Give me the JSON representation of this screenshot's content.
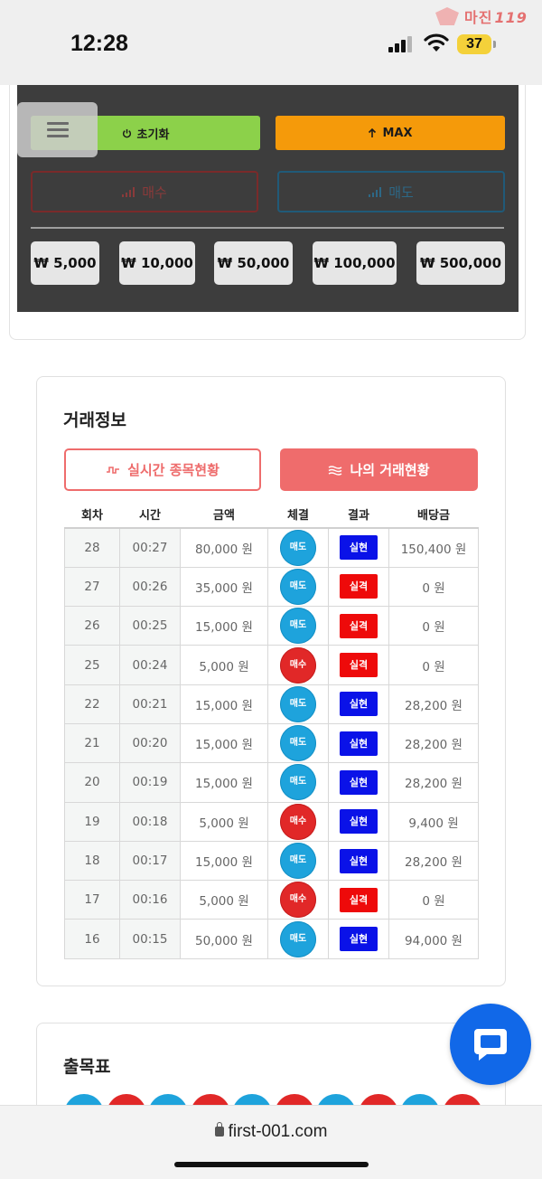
{
  "status_bar": {
    "time": "12:28",
    "battery": "37"
  },
  "watermark": {
    "brand": "마진",
    "number": "119"
  },
  "controls": {
    "reset_label": "초기화",
    "max_label": "MAX",
    "buy_label": "매수",
    "sell_label": "매도",
    "amounts": [
      "₩ 5,000",
      "₩ 10,000",
      "₩ 50,000",
      "₩ 100,000",
      "₩ 500,000"
    ]
  },
  "trade_info": {
    "title": "거래정보",
    "tab_realtime": "실시간 종목현황",
    "tab_mine": "나의 거래현황",
    "headers": [
      "회차",
      "시간",
      "금액",
      "체결",
      "결과",
      "배당금"
    ],
    "rows": [
      {
        "round": "28",
        "time": "00:27",
        "amount": "80,000 원",
        "side": "매도",
        "result": "실현",
        "payout": "150,400 원"
      },
      {
        "round": "27",
        "time": "00:26",
        "amount": "35,000 원",
        "side": "매도",
        "result": "실격",
        "payout": "0 원"
      },
      {
        "round": "26",
        "time": "00:25",
        "amount": "15,000 원",
        "side": "매도",
        "result": "실격",
        "payout": "0 원"
      },
      {
        "round": "25",
        "time": "00:24",
        "amount": "5,000 원",
        "side": "매수",
        "result": "실격",
        "payout": "0 원"
      },
      {
        "round": "22",
        "time": "00:21",
        "amount": "15,000 원",
        "side": "매도",
        "result": "실현",
        "payout": "28,200 원"
      },
      {
        "round": "21",
        "time": "00:20",
        "amount": "15,000 원",
        "side": "매도",
        "result": "실현",
        "payout": "28,200 원"
      },
      {
        "round": "20",
        "time": "00:19",
        "amount": "15,000 원",
        "side": "매도",
        "result": "실현",
        "payout": "28,200 원"
      },
      {
        "round": "19",
        "time": "00:18",
        "amount": "5,000 원",
        "side": "매수",
        "result": "실현",
        "payout": "9,400 원"
      },
      {
        "round": "18",
        "time": "00:17",
        "amount": "15,000 원",
        "side": "매도",
        "result": "실현",
        "payout": "28,200 원"
      },
      {
        "round": "17",
        "time": "00:16",
        "amount": "5,000 원",
        "side": "매수",
        "result": "실격",
        "payout": "0 원"
      },
      {
        "round": "16",
        "time": "00:15",
        "amount": "50,000 원",
        "side": "매도",
        "result": "실현",
        "payout": "94,000 원"
      }
    ]
  },
  "results": {
    "title": "출목표",
    "sequence": [
      "sell",
      "buy",
      "sell",
      "buy",
      "sell",
      "buy",
      "sell",
      "buy",
      "sell",
      "buy"
    ]
  },
  "browser": {
    "url": "first-001.com"
  },
  "colors": {
    "sell": "#1ea3dc",
    "buy": "#e12828",
    "win": "#0a12e8",
    "lose": "#ee0a0a",
    "accent": "#ef6c6c"
  }
}
